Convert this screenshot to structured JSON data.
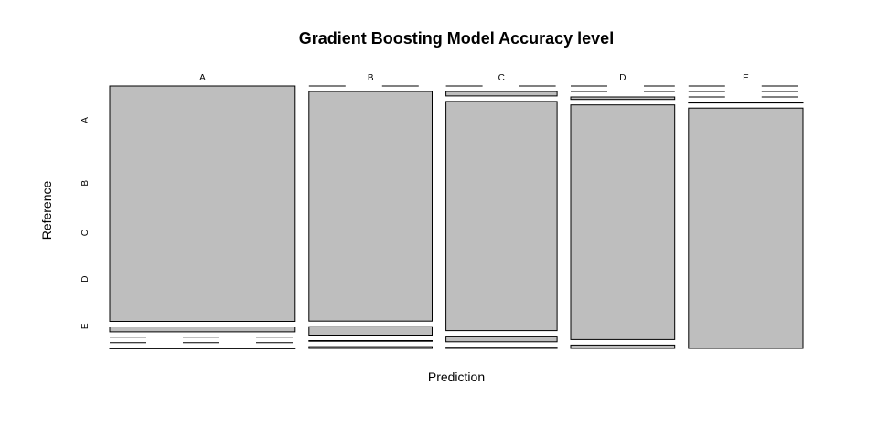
{
  "chart_data": {
    "type": "mosaic",
    "title": "Gradient Boosting Model Accuracy level",
    "xlabel": "Prediction",
    "ylabel": "Reference",
    "predicted_classes": [
      "A",
      "B",
      "C",
      "D",
      "E"
    ],
    "reference_classes": [
      "A",
      "B",
      "C",
      "D",
      "E"
    ],
    "counts": [
      [
        1674,
        0,
        0,
        0,
        0
      ],
      [
        35,
        1085,
        19,
        0,
        0
      ],
      [
        0,
        40,
        976,
        10,
        0
      ],
      [
        0,
        3,
        24,
        936,
        1
      ],
      [
        1,
        8,
        5,
        13,
        1055
      ]
    ],
    "fill_color": "#bebebe",
    "border_color": "#000000"
  }
}
